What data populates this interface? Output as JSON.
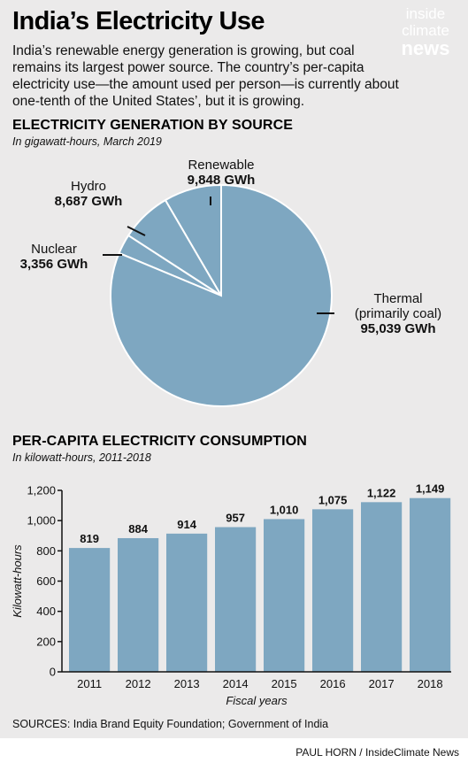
{
  "title": "India’s Electricity Use",
  "intro": "India’s renewable energy generation is growing, but coal remains its largest power source. The country’s per-capita electricity use—the amount used per person—is currently about one-tenth of the United States’, but it is growing.",
  "logo": {
    "line1": "inside",
    "line2": "climate",
    "line3": "news"
  },
  "colors": {
    "panel": "#ebeaea",
    "slice": "#7ea7c1",
    "bar": "#7ea7c1",
    "stroke": "#ffffff"
  },
  "chart_data": [
    {
      "type": "pie",
      "title": "ELECTRICITY GENERATION BY SOURCE",
      "subtitle": "In gigawatt-hours, March 2019",
      "slices": [
        {
          "name": "Renewable",
          "display": "9,848 GWh",
          "value": 9848
        },
        {
          "name": "Hydro",
          "display": "8,687 GWh",
          "value": 8687
        },
        {
          "name": "Nuclear",
          "display": "3,356 GWh",
          "value": 3356
        },
        {
          "name": "Thermal",
          "name2": "(primarily coal)",
          "display": "95,039 GWh",
          "value": 95039
        }
      ]
    },
    {
      "type": "bar",
      "title": "PER-CAPITA ELECTRICITY CONSUMPTION",
      "subtitle": "In kilowatt-hours, 2011-2018",
      "categories": [
        "2011",
        "2012",
        "2013",
        "2014",
        "2015",
        "2016",
        "2017",
        "2018"
      ],
      "values": [
        819,
        884,
        914,
        957,
        1010,
        1075,
        1122,
        1149
      ],
      "value_labels": [
        "819",
        "884",
        "914",
        "957",
        "1,010",
        "1,075",
        "1,122",
        "1,149"
      ],
      "xlabel": "Fiscal years",
      "ylabel": "Kilowatt-hours",
      "ylim": [
        0,
        1200
      ],
      "yticks": [
        0,
        200,
        400,
        600,
        800,
        1000,
        1200
      ],
      "ytick_labels": [
        "0",
        "200",
        "400",
        "600",
        "800",
        "1,000",
        "1,200"
      ],
      "grid": false
    }
  ],
  "sources": "SOURCES: India Brand Equity Foundation; Government of India",
  "credit": "PAUL HORN / InsideClimate News"
}
